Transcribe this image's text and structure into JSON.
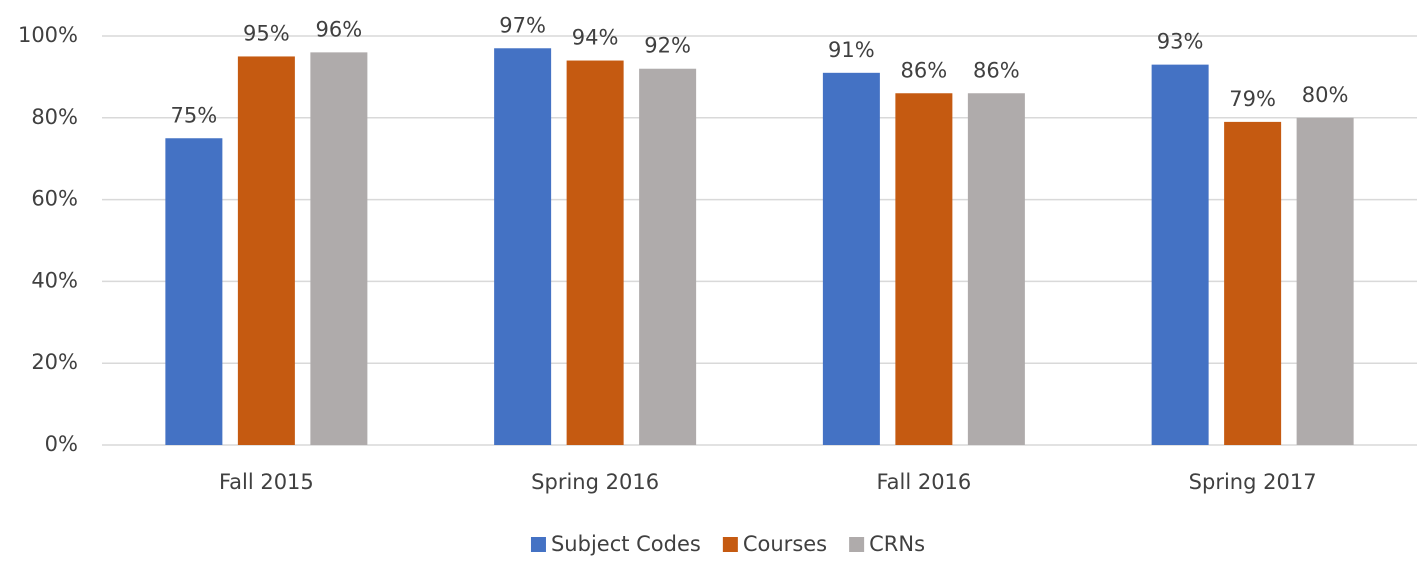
{
  "chart_data": {
    "type": "bar",
    "categories": [
      "Fall 2015",
      "Spring 2016",
      "Fall 2016",
      "Spring 2017"
    ],
    "series": [
      {
        "name": "Subject Codes",
        "color": "#4472c4",
        "values": [
          75,
          97,
          91,
          93
        ],
        "value_labels": [
          "75%",
          "97%",
          "91%",
          "93%"
        ]
      },
      {
        "name": "Courses",
        "color": "#c55a11",
        "values": [
          95,
          94,
          86,
          79
        ],
        "value_labels": [
          "95%",
          "94%",
          "86%",
          "79%"
        ]
      },
      {
        "name": "CRNs",
        "color": "#afabab",
        "values": [
          96,
          92,
          86,
          80
        ],
        "value_labels": [
          "96%",
          "92%",
          "86%",
          "80%"
        ]
      }
    ],
    "ylim": [
      0,
      100
    ],
    "yticks": [
      {
        "value": 0,
        "label": "0%"
      },
      {
        "value": 20,
        "label": "20%"
      },
      {
        "value": 40,
        "label": "40%"
      },
      {
        "value": 60,
        "label": "60%"
      },
      {
        "value": 80,
        "label": "80%"
      },
      {
        "value": 100,
        "label": "100%"
      }
    ],
    "grid": true,
    "legend": "bottom"
  }
}
